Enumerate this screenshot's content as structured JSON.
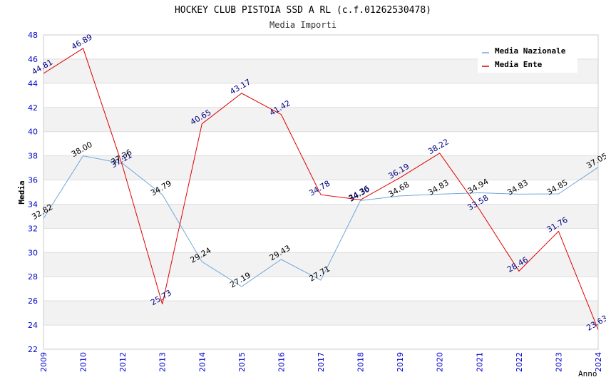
{
  "chart_data": {
    "type": "line",
    "title": "HOCKEY CLUB PISTOIA SSD A RL (c.f.01262530478)",
    "subtitle": "Media Importi",
    "ylabel": "Media",
    "xlabel": "Anno",
    "categories": [
      "2009",
      "2010",
      "2012",
      "2013",
      "2014",
      "2015",
      "2016",
      "2017",
      "2018",
      "2019",
      "2020",
      "2021",
      "2022",
      "2023",
      "2024"
    ],
    "ylim": [
      22,
      48
    ],
    "yticks": [
      22,
      24,
      26,
      28,
      30,
      32,
      34,
      36,
      38,
      40,
      42,
      44,
      46,
      48
    ],
    "grid": true,
    "legend_position": "top-right",
    "series": [
      {
        "name": "Media Nazionale",
        "color": "#6fa8dc",
        "label_color": "#000000",
        "values": [
          32.82,
          38.0,
          37.36,
          34.79,
          29.24,
          27.19,
          29.43,
          27.71,
          34.3,
          34.68,
          34.83,
          34.94,
          34.83,
          34.85,
          37.05
        ],
        "labels": [
          "32.82",
          "38.00",
          "37.36",
          "34.79",
          "29.24",
          "27.19",
          "29.43",
          "27.71",
          "34.30",
          "34.68",
          "34.83",
          "34.94",
          "34.83",
          "34.85",
          "37.05"
        ]
      },
      {
        "name": "Media Ente",
        "color": "#e00000",
        "label_color": "#000080",
        "values": [
          44.81,
          46.89,
          37.11,
          25.73,
          40.65,
          43.17,
          41.42,
          34.78,
          34.36,
          36.19,
          38.22,
          33.58,
          28.46,
          31.76,
          23.63
        ],
        "labels": [
          "44.81",
          "46.89",
          "37.11",
          "25.73",
          "40.65",
          "43.17",
          "41.42",
          "34.78",
          "34.36",
          "36.19",
          "38.22",
          "33.58",
          "28.46",
          "31.76",
          "23.63"
        ]
      }
    ]
  }
}
